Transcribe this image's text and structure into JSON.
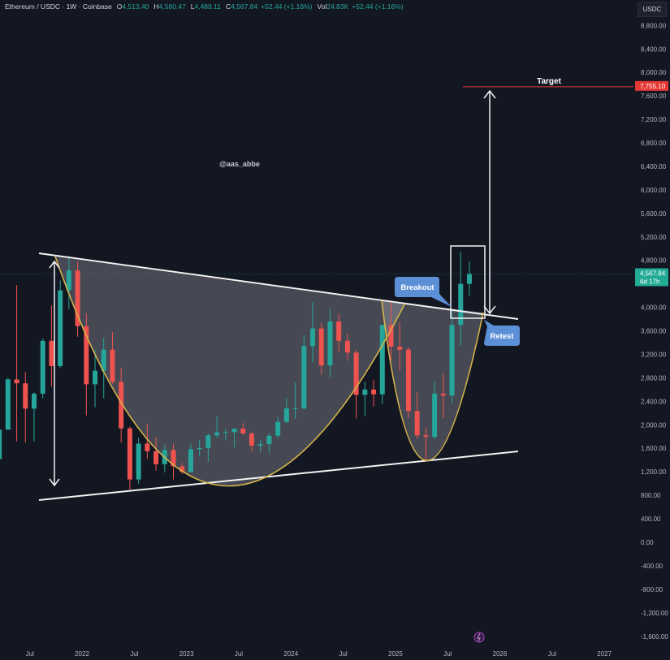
{
  "header": {
    "symbol": "Ethereum / USDC · 1W · Coinbase",
    "open_label": "O",
    "open": "4,513.40",
    "high_label": "H",
    "high": "4,580.47",
    "low_label": "L",
    "low": "4,489.11",
    "close_label": "C",
    "close": "4,567.84",
    "change": "+52.44 (+1.16%)",
    "vol_label": "Vol",
    "volume": "24.83K",
    "vol_change": "+52.44 (+1.16%)"
  },
  "price_axis": {
    "currency": "USDC"
  },
  "watermark": "@aas_abbe",
  "icons": {
    "bottom_marker": "lightning-icon"
  },
  "colors": {
    "up": "#26a69a",
    "down": "#ef5350",
    "target": "#e53935",
    "current_price": "#22ab94",
    "callout": "#5b8fd6",
    "cup": "#d6b44a",
    "background": "#131722"
  },
  "chart_data": {
    "type": "candlestick",
    "title": "",
    "xlabel": "",
    "ylabel": "",
    "ylim": [
      -1800,
      9000
    ],
    "grid": false,
    "y_ticks": [
      "8,800.00",
      "8,400.00",
      "8,000.00",
      "7,600.00",
      "7,200.00",
      "6,800.00",
      "6,400.00",
      "6,000.00",
      "5,600.00",
      "5,200.00",
      "4,800.00",
      "4,000.00",
      "3,600.00",
      "3,200.00",
      "2,800.00",
      "2,400.00",
      "2,000.00",
      "1,600.00",
      "1,200.00",
      "800.00",
      "400.00",
      "0.00",
      "-400.00",
      "-800.00",
      "-1,200.00",
      "-1,600.00"
    ],
    "y_tick_values": [
      8800,
      8400,
      8000,
      7600,
      7200,
      6800,
      6400,
      6000,
      5600,
      5200,
      4800,
      4000,
      3600,
      3200,
      2800,
      2400,
      2000,
      1600,
      1200,
      800,
      400,
      0,
      -400,
      -800,
      -1200,
      -1600
    ],
    "x_ticks": [
      "Jul",
      "2022",
      "Jul",
      "2023",
      "Jul",
      "2024",
      "Jul",
      "2025",
      "Jul",
      "2026",
      "Jul",
      "2027"
    ],
    "x_tick_dates": [
      "2021-07",
      "2022-01",
      "2022-07",
      "2023-01",
      "2023-07",
      "2024-01",
      "2024-07",
      "2025-01",
      "2025-07",
      "2026-01",
      "2026-07",
      "2027-01"
    ],
    "candles": {
      "dates": [
        "2021-03",
        "2021-04",
        "2021-05",
        "2021-06",
        "2021-07",
        "2021-08",
        "2021-09",
        "2021-10",
        "2021-11",
        "2021-12",
        "2022-01",
        "2022-02",
        "2022-03",
        "2022-04",
        "2022-05",
        "2022-06",
        "2022-07",
        "2022-08",
        "2022-09",
        "2022-10",
        "2022-11",
        "2022-12",
        "2023-01",
        "2023-02",
        "2023-03",
        "2023-04",
        "2023-05",
        "2023-06",
        "2023-07",
        "2023-08",
        "2023-09",
        "2023-10",
        "2023-11",
        "2023-12",
        "2024-01",
        "2024-02",
        "2024-03",
        "2024-04",
        "2024-05",
        "2024-06",
        "2024-07",
        "2024-08",
        "2024-09",
        "2024-10",
        "2024-11",
        "2024-12",
        "2025-01",
        "2025-02",
        "2025-03",
        "2025-04",
        "2025-05",
        "2025-06",
        "2025-07",
        "2025-08",
        "2025-09"
      ],
      "open": [
        1417,
        1918,
        2773,
        2706,
        2275,
        2530,
        3430,
        3000,
        4290,
        4630,
        3680,
        2690,
        2920,
        3280,
        2730,
        1940,
        1070,
        1680,
        1550,
        1330,
        1570,
        1295,
        1196,
        1585,
        1605,
        1820,
        1870,
        1875,
        1935,
        1855,
        1645,
        1670,
        1815,
        2050,
        2280,
        2280,
        3340,
        3640,
        3010,
        3760,
        3430,
        3230,
        2510,
        2600,
        2520,
        3700,
        3330,
        3280,
        2235,
        1820,
        1795,
        2530,
        2500,
        3700,
        4400
      ],
      "high": [
        1945,
        2800,
        4380,
        2900,
        2550,
        3470,
        4030,
        4460,
        4870,
        4780,
        3900,
        3280,
        3480,
        3580,
        2970,
        1970,
        1780,
        2020,
        1790,
        1660,
        1680,
        1350,
        1680,
        1740,
        1850,
        2140,
        1930,
        1930,
        2030,
        1870,
        1750,
        1860,
        2130,
        2450,
        2720,
        3520,
        4090,
        3730,
        3980,
        3890,
        3560,
        3280,
        2730,
        2770,
        3680,
        4110,
        3740,
        3330,
        2550,
        1960,
        2740,
        2880,
        3940,
        4950,
        4780
      ],
      "low": [
        1440,
        1930,
        1720,
        1700,
        1720,
        2450,
        2650,
        2970,
        3970,
        3500,
        2160,
        2300,
        2450,
        2700,
        1700,
        880,
        1000,
        1420,
        1220,
        1190,
        1070,
        1160,
        1190,
        1460,
        1370,
        1780,
        1740,
        1620,
        1830,
        1550,
        1530,
        1520,
        1770,
        2020,
        2100,
        2260,
        3060,
        2850,
        2810,
        3240,
        3090,
        2110,
        2150,
        2310,
        2360,
        3100,
        2920,
        2120,
        1760,
        1385,
        1750,
        2110,
        2370,
        3350,
        4200
      ],
      "close": [
        1918,
        2773,
        2706,
        2275,
        2530,
        3430,
        3000,
        4290,
        4630,
        3680,
        2690,
        2920,
        3280,
        2730,
        1940,
        1070,
        1680,
        1550,
        1330,
        1570,
        1295,
        1196,
        1585,
        1605,
        1820,
        1870,
        1875,
        1935,
        1855,
        1645,
        1670,
        1815,
        2050,
        2280,
        2280,
        3340,
        3640,
        3010,
        3760,
        3430,
        3230,
        2510,
        2600,
        2520,
        3700,
        3330,
        3280,
        2235,
        1820,
        1795,
        2530,
        2500,
        3700,
        4400,
        4568
      ]
    },
    "price_labels": [
      {
        "text": "7,755.10",
        "value": 7755.1,
        "kind": "target"
      },
      {
        "text": "4,567.84",
        "sub": "6d 17h",
        "value": 4567.84,
        "kind": "current"
      }
    ],
    "annotations": {
      "target": "Target",
      "breakout": "Breakout",
      "retest": "Retest"
    }
  }
}
